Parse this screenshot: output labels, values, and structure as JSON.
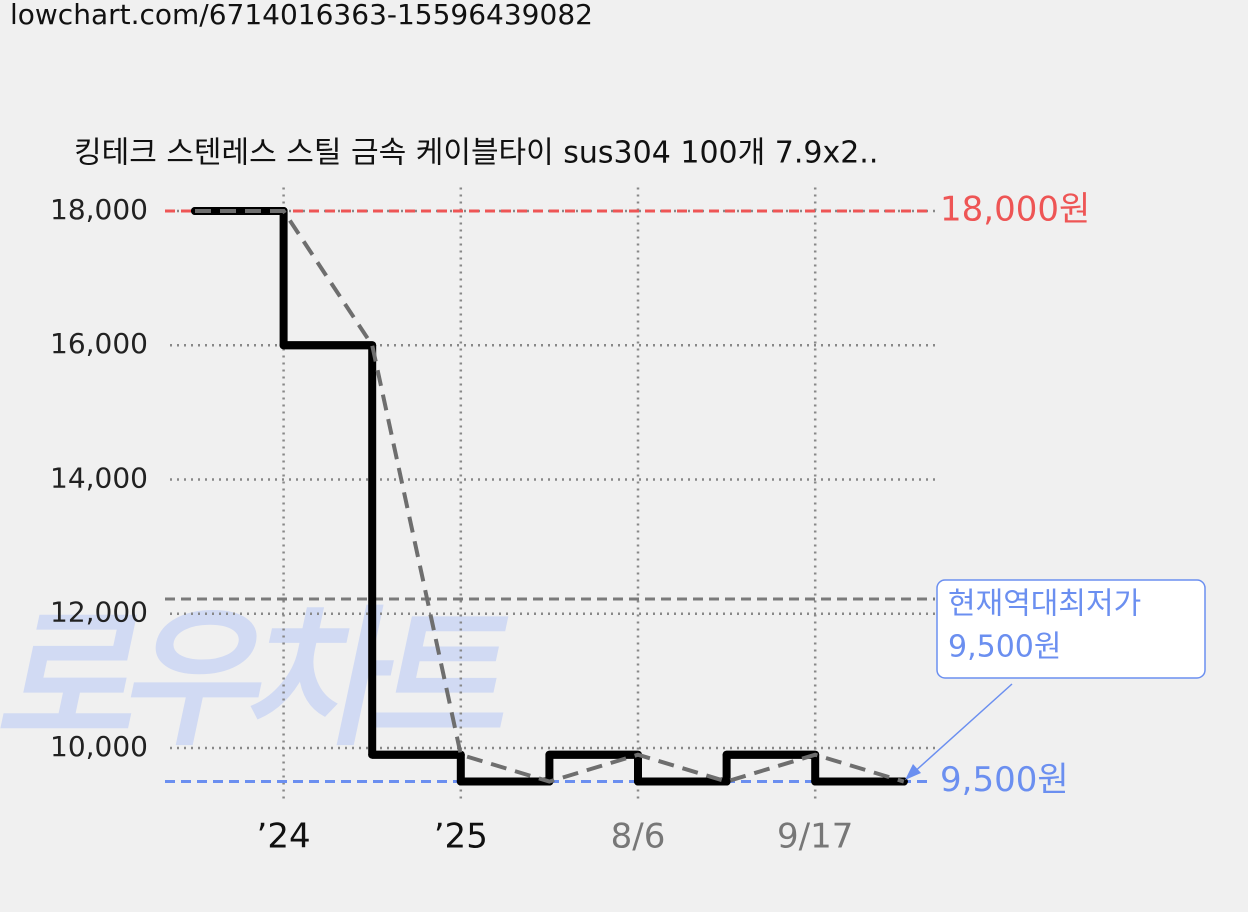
{
  "url": "lowchart.com/6714016363-15596439082",
  "chart_data": {
    "type": "step-line",
    "title": "킹테크 스텐레스 스틸 금속 케이블타이 sus304 100개 7.9x2..",
    "watermark": "로우차트",
    "categories": [
      null,
      "’24",
      null,
      "’25",
      null,
      "8/6",
      null,
      "9/17",
      null
    ],
    "category_colors": [
      null,
      "#111111",
      null,
      "#111111",
      null,
      "#777777",
      null,
      "#777777",
      null
    ],
    "series": [
      {
        "color": "#000000",
        "values": [
          18000,
          16000,
          9900,
          9500,
          9900,
          9500,
          9900,
          9500,
          9500
        ]
      },
      {
        "color": "#6e6e6e",
        "values": [
          18000,
          18000,
          16000,
          9900,
          9500,
          9900,
          9500,
          9900,
          9500
        ]
      }
    ],
    "ylim": [
      9200,
      18350
    ],
    "yticks": [
      {
        "value": 10000,
        "label": "10,000"
      },
      {
        "value": 12000,
        "label": "12,000"
      },
      {
        "value": 14000,
        "label": "14,000"
      },
      {
        "value": 16000,
        "label": "16,000"
      },
      {
        "value": 18000,
        "label": "18,000"
      }
    ],
    "grid": true,
    "max_line": {
      "value": 18000,
      "label": "18,000원",
      "color": "#ee5555"
    },
    "min_line": {
      "value": 9500,
      "label": "9,500원",
      "color": "#6b8ff0"
    },
    "ref_line": {
      "value": 12220,
      "color": "#7a7a7a"
    },
    "callout": {
      "lines": [
        "현재역대최저가",
        "9,500원"
      ],
      "color": "#6b8ff0"
    }
  }
}
